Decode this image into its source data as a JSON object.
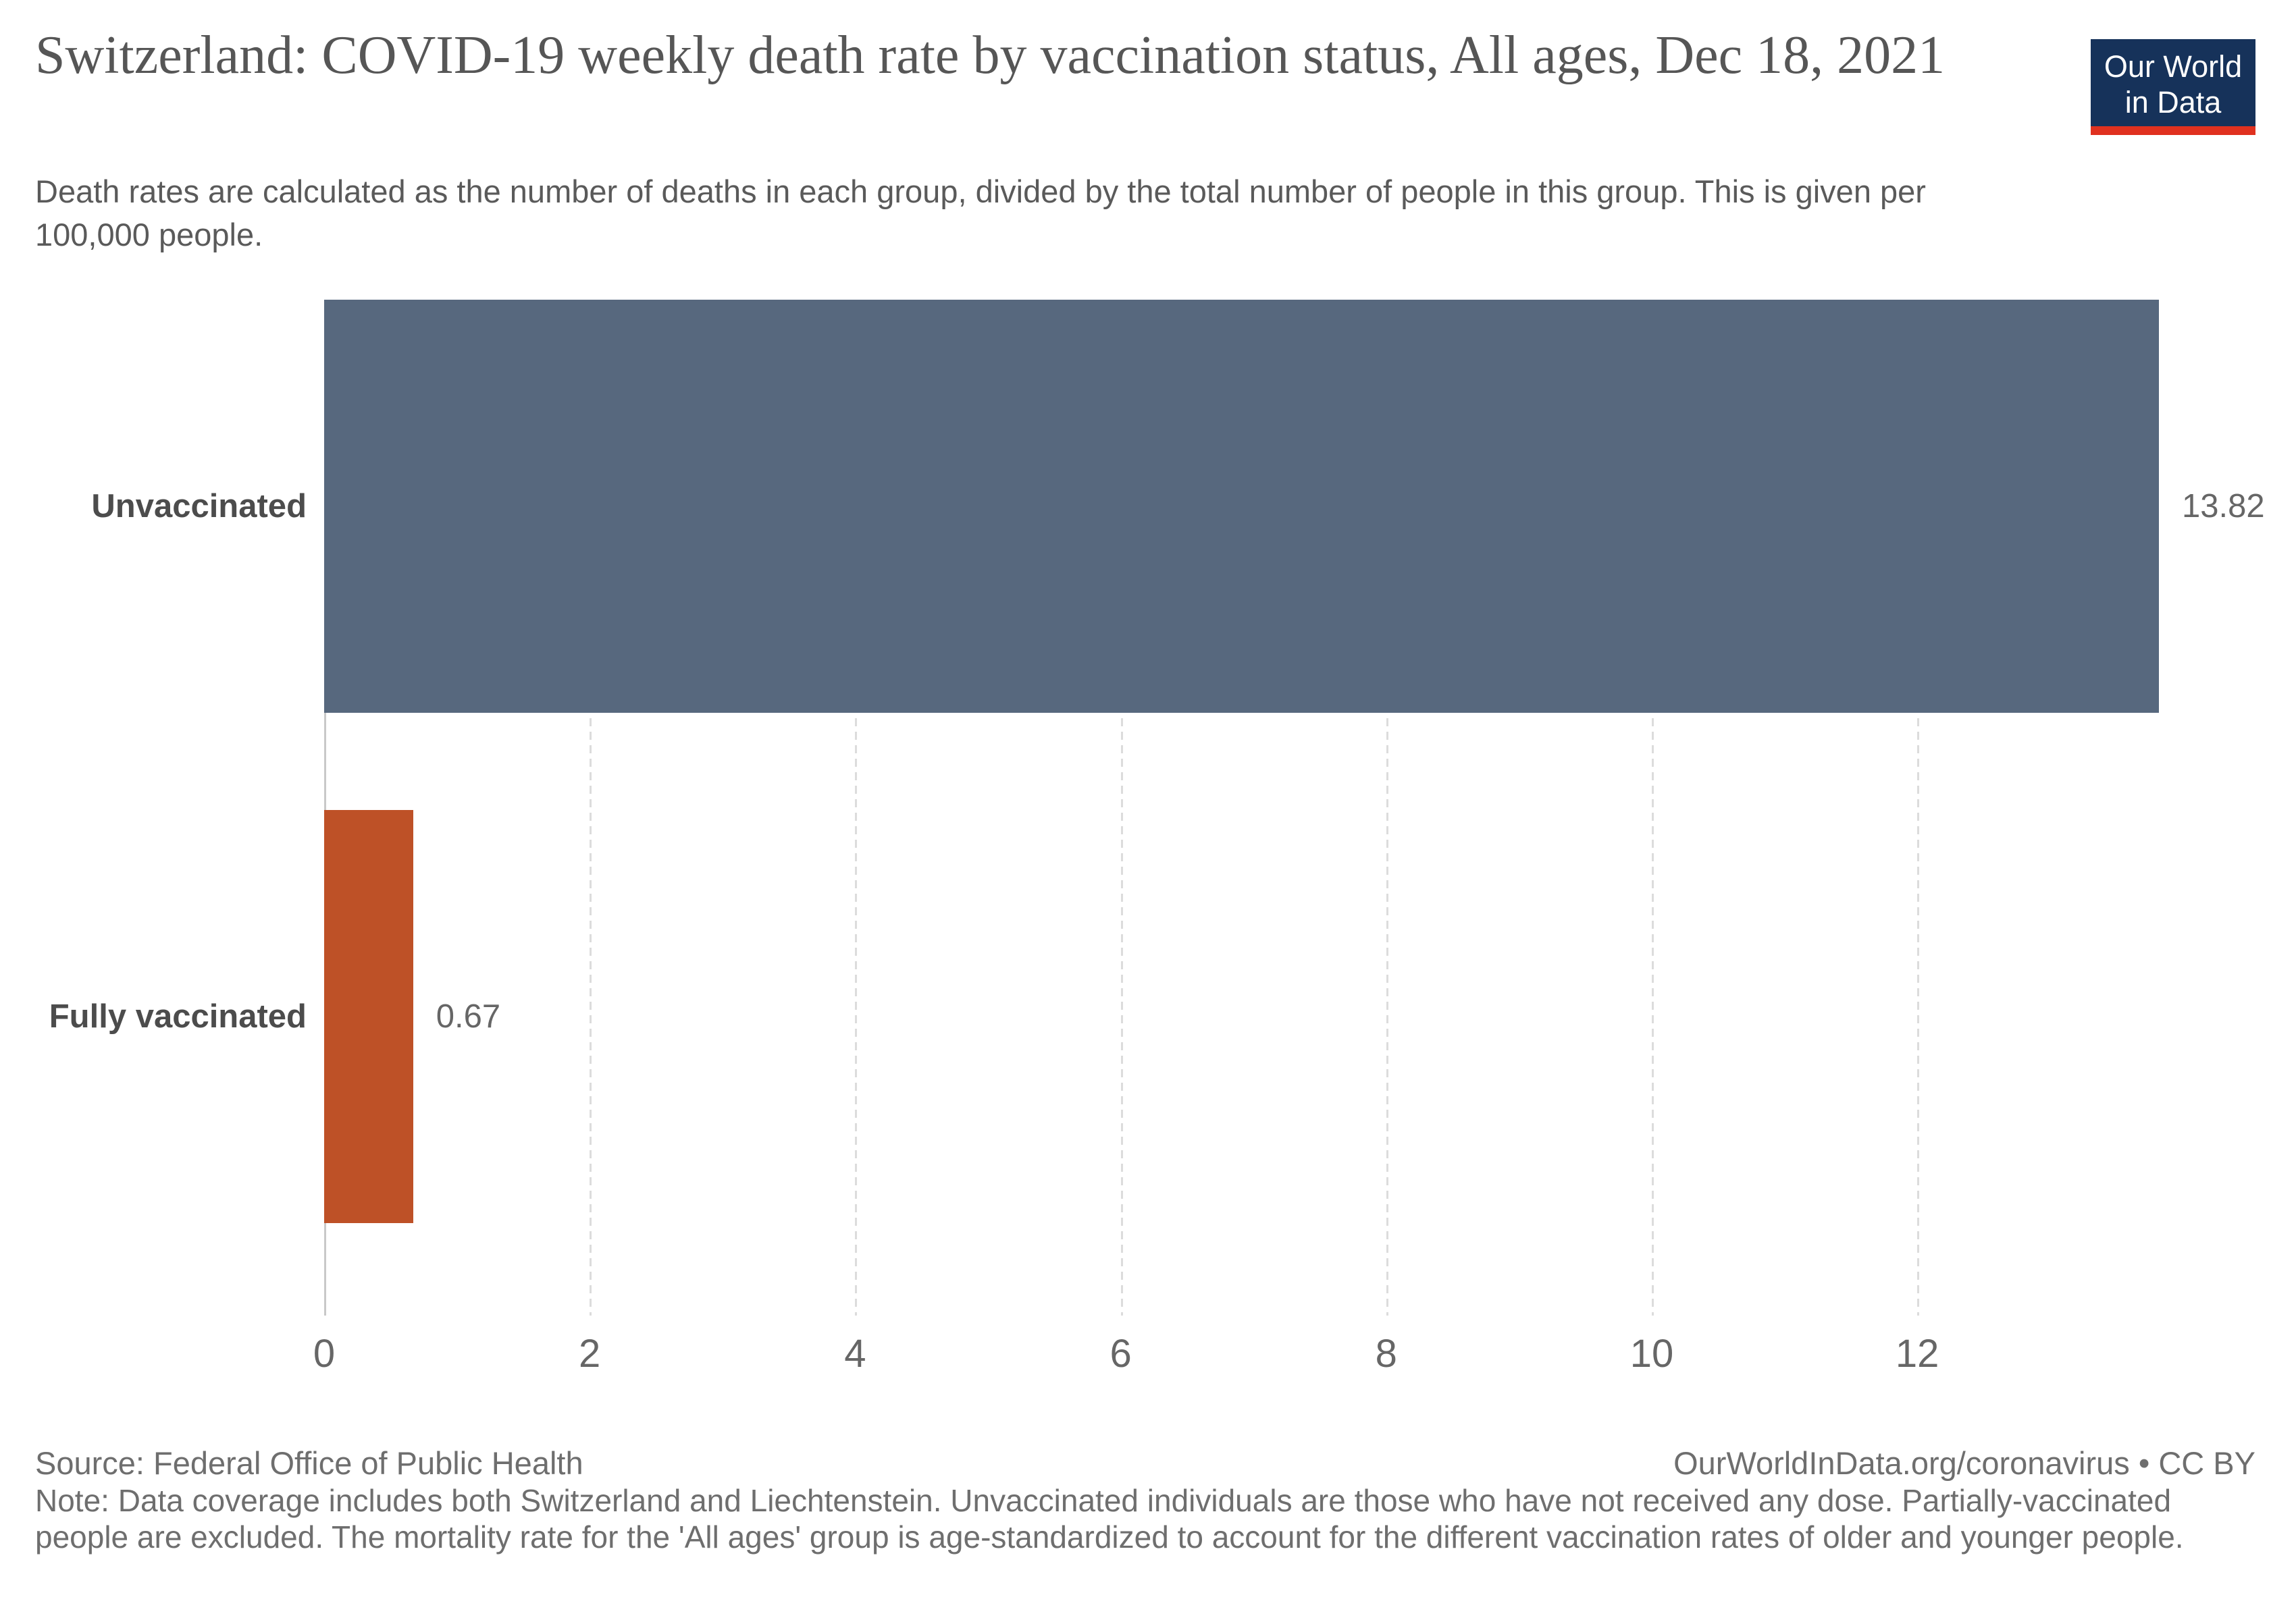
{
  "header": {
    "title": "Switzerland: COVID-19 weekly death rate by vaccination status, All ages, Dec 18, 2021",
    "subtitle": "Death rates are calculated as the number of deaths in each group, divided by the total number of people in this group. This is given per 100,000 people."
  },
  "logo": {
    "line1": "Our World",
    "line2": "in Data",
    "bg_color": "#16325A",
    "accent_color": "#E0311F"
  },
  "chart_data": {
    "type": "bar",
    "orientation": "horizontal",
    "title": "Switzerland: COVID-19 weekly death rate by vaccination status, All ages, Dec 18, 2021",
    "categories": [
      "Unvaccinated",
      "Fully vaccinated"
    ],
    "values": [
      13.82,
      0.67
    ],
    "value_labels": [
      "13.82",
      "0.67"
    ],
    "bar_colors": [
      "#57687E",
      "#BE5127"
    ],
    "x_ticks": [
      "0",
      "2",
      "4",
      "6",
      "8",
      "10",
      "12"
    ],
    "xlim": [
      0,
      14.8
    ],
    "unit": "deaths per 100,000 people",
    "grid": "vertical-dashed",
    "legend": "none"
  },
  "footer": {
    "source": "Source: Federal Office of Public Health",
    "note": "Note: Data coverage includes both Switzerland and Liechtenstein. Unvaccinated individuals are those who have not received any dose. Partially-vaccinated people are excluded. The mortality rate for the 'All ages' group is age-standardized to account for the different vaccination rates of older and younger people.",
    "attribution": "OurWorldInData.org/coronavirus • CC BY"
  }
}
